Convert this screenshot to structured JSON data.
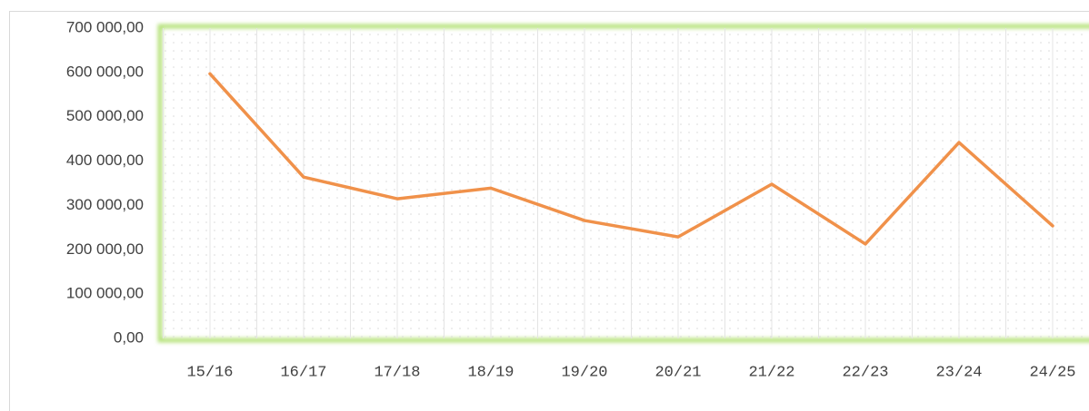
{
  "chart_data": {
    "type": "line",
    "categories": [
      "15/16",
      "16/17",
      "17/18",
      "18/19",
      "19/20",
      "20/21",
      "21/22",
      "22/23",
      "23/24",
      "24/25"
    ],
    "values": [
      597000,
      364000,
      315000,
      339000,
      266000,
      229000,
      348000,
      213000,
      442000,
      254000
    ],
    "color": "#f0914a",
    "ylim": [
      0,
      700000
    ],
    "yticks": [
      {
        "value": 0,
        "label": "0,00"
      },
      {
        "value": 100000,
        "label": "100 000,00"
      },
      {
        "value": 200000,
        "label": "200 000,00"
      },
      {
        "value": 300000,
        "label": "300 000,00"
      },
      {
        "value": 400000,
        "label": "400 000,00"
      },
      {
        "value": 500000,
        "label": "500 000,00"
      },
      {
        "value": 600000,
        "label": "600 000,00"
      },
      {
        "value": 700000,
        "label": "700 000,00"
      }
    ],
    "grid": true
  }
}
